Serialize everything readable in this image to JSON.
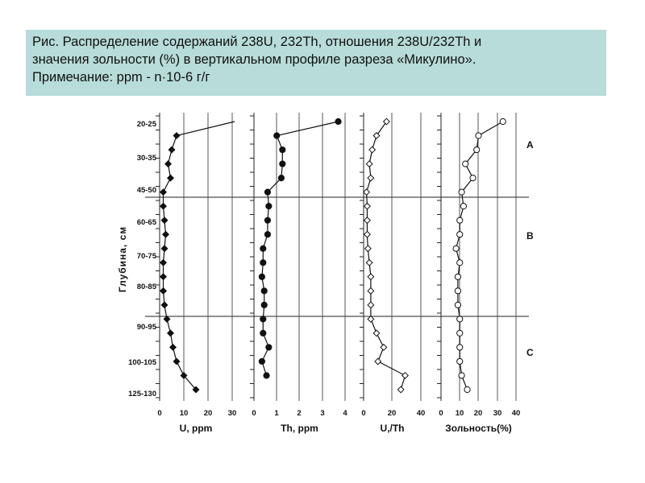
{
  "caption": {
    "line1": "Рис. Распределение содержаний 238U, 232Th, отношения 238U/232Th и",
    "line2": "значения зольности (%) в вертикальном профиле разреза «Микулино».",
    "line3": "Примечание: ppm - n·10-6 г/г"
  },
  "chart_data": {
    "type": "line",
    "ylabel": "Глубина, см",
    "depth_labels": [
      "20-25",
      "30-35",
      "45-50",
      "60-65",
      "70-75",
      "80-85",
      "90-95",
      "100-105",
      "125-130"
    ],
    "zones": [
      "A",
      "B",
      "C"
    ],
    "series": [
      {
        "xlabel": "U, ppm",
        "xlim": [
          0,
          30
        ],
        "xticks": [
          "0",
          "10",
          "20",
          "30"
        ],
        "marker": "diamond-filled",
        "values": [
          31,
          7,
          5,
          3.5,
          4.5,
          1.5,
          1.5,
          2,
          2.5,
          2,
          1.5,
          1.5,
          1.5,
          2,
          3,
          4.5,
          5.5,
          7,
          10,
          15
        ]
      },
      {
        "xlabel": "Th, ppm",
        "xlim": [
          0,
          4
        ],
        "xticks": [
          "0",
          "1",
          "2",
          "3",
          "4"
        ],
        "marker": "circle-filled",
        "values": [
          3.7,
          1.0,
          1.25,
          1.25,
          1.2,
          0.6,
          0.65,
          0.6,
          0.6,
          0.4,
          0.4,
          0.35,
          0.45,
          0.45,
          0.4,
          0.4,
          0.65,
          0.35,
          0.55,
          null
        ]
      },
      {
        "xlabel": "U,/Th",
        "xlim": [
          0,
          40
        ],
        "xticks": [
          "0",
          "20",
          "40"
        ],
        "marker": "diamond-open",
        "values": [
          16,
          9,
          6,
          4,
          5,
          2,
          2.5,
          2.5,
          2.5,
          3,
          4,
          5,
          5,
          5,
          5,
          9,
          14,
          10,
          29,
          26
        ]
      },
      {
        "xlabel": "Зольность(%)",
        "xlim": [
          0,
          40
        ],
        "xticks": [
          "0",
          "10",
          "20",
          "30",
          "40"
        ],
        "marker": "circle-open",
        "values": [
          33,
          20,
          19,
          13,
          17,
          11,
          12,
          10,
          10,
          8,
          10,
          9,
          9,
          9,
          10,
          10,
          10,
          10,
          11,
          14
        ]
      }
    ]
  }
}
